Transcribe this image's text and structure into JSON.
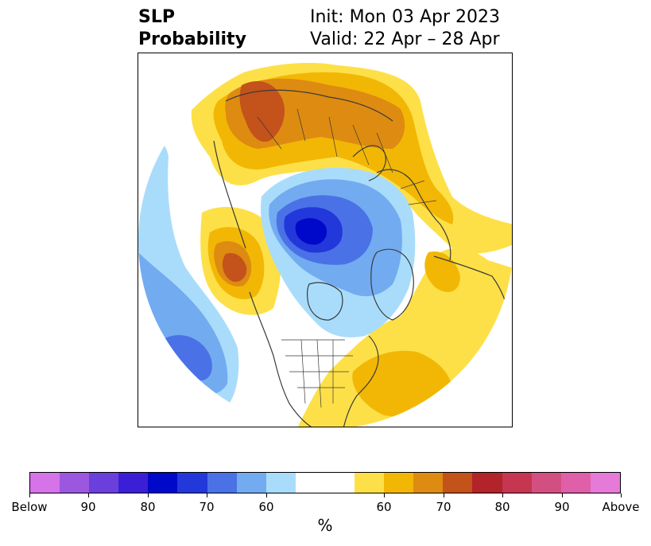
{
  "title": {
    "left_line1": "SLP",
    "left_line2": "Probability",
    "right_line1": "Init: Mon 03 Apr 2023",
    "right_line2": "Valid: 22 Apr – 28 Apr"
  },
  "colorbar": {
    "colors": [
      "#d673e8",
      "#9c57e0",
      "#6a3fdb",
      "#3a1fd6",
      "#0008c9",
      "#2238da",
      "#4a72e6",
      "#73abf0",
      "#a9dcfb",
      "#ffffff",
      "#ffffff",
      "#fde047",
      "#f2b705",
      "#de8b11",
      "#c4521b",
      "#b3232a",
      "#c63650",
      "#d44f81",
      "#df60a9",
      "#e57ad8"
    ],
    "labels": [
      "Below",
      "90",
      "80",
      "70",
      "60",
      "60",
      "70",
      "80",
      "90",
      "Above"
    ],
    "unit": "%"
  },
  "map": {
    "projection": "north-polar-stereographic",
    "categories": {
      "below_normal": [
        "60",
        "70",
        "80"
      ],
      "above_normal": [
        "60",
        "70"
      ]
    },
    "features": [
      "coastlines",
      "country-borders",
      "us-state-borders"
    ]
  }
}
